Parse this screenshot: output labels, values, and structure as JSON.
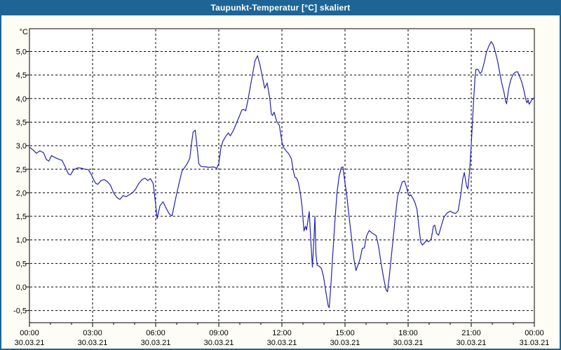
{
  "window": {
    "title": "Taupunkt-Temperatur [°C] skaliert"
  },
  "colors": {
    "titlebar": "#1e6596",
    "window_border": "#1e6596",
    "background": "#fdfdf5",
    "plot_background": "#ffffff",
    "grid": "#000000",
    "axis": "#000000",
    "line": "#2222b2"
  },
  "chart_data": {
    "type": "line",
    "title": "Taupunkt-Temperatur [°C] skaliert",
    "xlabel": "",
    "ylabel": "",
    "y_unit": "°C",
    "grid": "dashed",
    "legend": "none",
    "ylim": [
      -0.5,
      5.0
    ],
    "xlim_hours": [
      0,
      24
    ],
    "y_tick_values": [
      5.0,
      4.5,
      4.0,
      3.5,
      3.0,
      2.5,
      2.0,
      1.5,
      1.0,
      0.5,
      0.0,
      -0.5
    ],
    "y_tick_labels": [
      "5,0",
      "4,5",
      "4,0",
      "3,5",
      "3,0",
      "2,5",
      "2,0",
      "1,5",
      "1,0",
      "0,5",
      "0,0",
      "-0,5"
    ],
    "x_ticks": [
      {
        "hour": 0,
        "time": "00:00",
        "date": "30.03.21"
      },
      {
        "hour": 3,
        "time": "03:00",
        "date": "30.03.21"
      },
      {
        "hour": 6,
        "time": "06:00",
        "date": "30.03.21"
      },
      {
        "hour": 9,
        "time": "09:00",
        "date": "30.03.21"
      },
      {
        "hour": 12,
        "time": "12:00",
        "date": "30.03.21"
      },
      {
        "hour": 15,
        "time": "15:00",
        "date": "30.03.21"
      },
      {
        "hour": 18,
        "time": "18:00",
        "date": "30.03.21"
      },
      {
        "hour": 21,
        "time": "21:00",
        "date": "30.03.21"
      },
      {
        "hour": 24,
        "time": "00:00",
        "date": "31.03.21"
      }
    ],
    "minor_tick_every_hours": 1,
    "series": [
      {
        "name": "Taupunkt-Temperatur",
        "color": "#2222b2",
        "points": [
          [
            0,
            2.97
          ],
          [
            0.17,
            2.91
          ],
          [
            0.33,
            2.84
          ],
          [
            0.5,
            2.89
          ],
          [
            0.67,
            2.85
          ],
          [
            0.8,
            2.71
          ],
          [
            0.92,
            2.67
          ],
          [
            1.05,
            2.79
          ],
          [
            1.2,
            2.75
          ],
          [
            1.4,
            2.71
          ],
          [
            1.55,
            2.69
          ],
          [
            1.7,
            2.55
          ],
          [
            1.85,
            2.4
          ],
          [
            1.95,
            2.38
          ],
          [
            2.1,
            2.49
          ],
          [
            2.3,
            2.53
          ],
          [
            2.5,
            2.52
          ],
          [
            2.65,
            2.5
          ],
          [
            2.8,
            2.49
          ],
          [
            2.95,
            2.38
          ],
          [
            3.05,
            2.28
          ],
          [
            3.15,
            2.2
          ],
          [
            3.25,
            2.18
          ],
          [
            3.4,
            2.26
          ],
          [
            3.55,
            2.28
          ],
          [
            3.7,
            2.24
          ],
          [
            3.85,
            2.16
          ],
          [
            4,
            2
          ],
          [
            4.15,
            1.9
          ],
          [
            4.3,
            1.86
          ],
          [
            4.45,
            1.94
          ],
          [
            4.6,
            1.92
          ],
          [
            4.75,
            1.96
          ],
          [
            4.9,
            2
          ],
          [
            5.05,
            2.08
          ],
          [
            5.2,
            2.2
          ],
          [
            5.35,
            2.28
          ],
          [
            5.5,
            2.31
          ],
          [
            5.62,
            2.26
          ],
          [
            5.75,
            2.3
          ],
          [
            5.88,
            2.2
          ],
          [
            6,
            1.75
          ],
          [
            6.07,
            1.45
          ],
          [
            6.2,
            1.72
          ],
          [
            6.35,
            1.81
          ],
          [
            6.5,
            1.67
          ],
          [
            6.65,
            1.55
          ],
          [
            6.78,
            1.51
          ],
          [
            6.95,
            1.88
          ],
          [
            7.1,
            2.18
          ],
          [
            7.25,
            2.46
          ],
          [
            7.38,
            2.54
          ],
          [
            7.5,
            2.62
          ],
          [
            7.62,
            2.73
          ],
          [
            7.72,
            3.1
          ],
          [
            7.78,
            3.29
          ],
          [
            7.88,
            3.33
          ],
          [
            7.95,
            3.05
          ],
          [
            8.05,
            2.62
          ],
          [
            8.15,
            2.56
          ],
          [
            8.35,
            2.55
          ],
          [
            8.55,
            2.54
          ],
          [
            8.75,
            2.55
          ],
          [
            8.9,
            2.52
          ],
          [
            9,
            2.62
          ],
          [
            9.1,
            2.95
          ],
          [
            9.2,
            3.1
          ],
          [
            9.32,
            3.19
          ],
          [
            9.45,
            3.27
          ],
          [
            9.55,
            3.21
          ],
          [
            9.7,
            3.33
          ],
          [
            9.88,
            3.52
          ],
          [
            10.1,
            3.76
          ],
          [
            10.18,
            3.77
          ],
          [
            10.28,
            3.74
          ],
          [
            10.4,
            4
          ],
          [
            10.5,
            4.26
          ],
          [
            10.62,
            4.55
          ],
          [
            10.72,
            4.8
          ],
          [
            10.84,
            4.91
          ],
          [
            10.95,
            4.73
          ],
          [
            11.05,
            4.51
          ],
          [
            11.18,
            4.22
          ],
          [
            11.3,
            4.33
          ],
          [
            11.42,
            4.02
          ],
          [
            11.5,
            3.67
          ],
          [
            11.56,
            3.64
          ],
          [
            11.63,
            3.71
          ],
          [
            11.75,
            3.52
          ],
          [
            11.88,
            3.43
          ],
          [
            12,
            3.08
          ],
          [
            12.08,
            2.96
          ],
          [
            12.2,
            2.89
          ],
          [
            12.32,
            2.83
          ],
          [
            12.45,
            2.72
          ],
          [
            12.55,
            2.45
          ],
          [
            12.62,
            2.33
          ],
          [
            12.7,
            2.31
          ],
          [
            12.78,
            2.22
          ],
          [
            12.88,
            1.98
          ],
          [
            12.96,
            1.7
          ],
          [
            13.05,
            1.19
          ],
          [
            13.12,
            1.29
          ],
          [
            13.17,
            1.21
          ],
          [
            13.3,
            1.6
          ],
          [
            13.37,
            1.01
          ],
          [
            13.45,
            0.42
          ],
          [
            13.52,
            0.99
          ],
          [
            13.57,
            1.5
          ],
          [
            13.62,
            0.69
          ],
          [
            13.68,
            0.46
          ],
          [
            13.78,
            0.44
          ],
          [
            13.88,
            0.39
          ],
          [
            13.98,
            0.22
          ],
          [
            14.08,
            -0.08
          ],
          [
            14.2,
            -0.4
          ],
          [
            14.25,
            -0.44
          ],
          [
            14.33,
            0.05
          ],
          [
            14.42,
            0.7
          ],
          [
            14.52,
            1.4
          ],
          [
            14.62,
            2
          ],
          [
            14.72,
            2.35
          ],
          [
            14.82,
            2.53
          ],
          [
            14.9,
            2.55
          ],
          [
            15,
            2.2
          ],
          [
            15.07,
            2
          ],
          [
            15.18,
            1.55
          ],
          [
            15.3,
            1.08
          ],
          [
            15.42,
            0.6
          ],
          [
            15.52,
            0.35
          ],
          [
            15.62,
            0.47
          ],
          [
            15.72,
            0.6
          ],
          [
            15.82,
            0.82
          ],
          [
            15.92,
            0.83
          ],
          [
            16.02,
            1.08
          ],
          [
            16.15,
            1.2
          ],
          [
            16.3,
            1.14
          ],
          [
            16.48,
            1.09
          ],
          [
            16.6,
            0.85
          ],
          [
            16.72,
            0.49
          ],
          [
            16.84,
            0.18
          ],
          [
            16.95,
            -0.06
          ],
          [
            17.02,
            -0.1
          ],
          [
            17.1,
            0.2
          ],
          [
            17.2,
            0.64
          ],
          [
            17.3,
            1.08
          ],
          [
            17.4,
            1.53
          ],
          [
            17.5,
            1.93
          ],
          [
            17.6,
            2.06
          ],
          [
            17.72,
            2.23
          ],
          [
            17.83,
            2.25
          ],
          [
            17.95,
            2.08
          ],
          [
            18,
            1.98
          ],
          [
            18.06,
            1.93
          ],
          [
            18.12,
            1.96
          ],
          [
            18.22,
            1.89
          ],
          [
            18.32,
            1.8
          ],
          [
            18.42,
            1.65
          ],
          [
            18.52,
            1.25
          ],
          [
            18.6,
            0.95
          ],
          [
            18.68,
            0.89
          ],
          [
            18.78,
            0.94
          ],
          [
            18.88,
            0.99
          ],
          [
            18.98,
            0.96
          ],
          [
            19.1,
            1.02
          ],
          [
            19.2,
            1.29
          ],
          [
            19.27,
            1.31
          ],
          [
            19.35,
            1.14
          ],
          [
            19.45,
            1.1
          ],
          [
            19.58,
            1.3
          ],
          [
            19.7,
            1.48
          ],
          [
            19.85,
            1.57
          ],
          [
            20,
            1.61
          ],
          [
            20.12,
            1.58
          ],
          [
            20.25,
            1.56
          ],
          [
            20.38,
            1.62
          ],
          [
            20.5,
            1.95
          ],
          [
            20.6,
            2.3
          ],
          [
            20.67,
            2.43
          ],
          [
            20.78,
            2.14
          ],
          [
            20.84,
            2.08
          ],
          [
            20.93,
            2.5
          ],
          [
            21,
            3.02
          ],
          [
            21.06,
            3.52
          ],
          [
            21.12,
            4.01
          ],
          [
            21.18,
            4.45
          ],
          [
            21.22,
            4.62
          ],
          [
            21.32,
            4.62
          ],
          [
            21.42,
            4.53
          ],
          [
            21.5,
            4.57
          ],
          [
            21.62,
            4.77
          ],
          [
            21.72,
            4.98
          ],
          [
            21.85,
            5.13
          ],
          [
            21.95,
            5.21
          ],
          [
            22.05,
            5.14
          ],
          [
            22.15,
            4.98
          ],
          [
            22.25,
            4.8
          ],
          [
            22.35,
            4.56
          ],
          [
            22.45,
            4.33
          ],
          [
            22.55,
            4.15
          ],
          [
            22.63,
            3.95
          ],
          [
            22.68,
            3.89
          ],
          [
            22.78,
            4.21
          ],
          [
            22.88,
            4.4
          ],
          [
            23,
            4.52
          ],
          [
            23.1,
            4.56
          ],
          [
            23.2,
            4.57
          ],
          [
            23.3,
            4.47
          ],
          [
            23.4,
            4.35
          ],
          [
            23.5,
            4.18
          ],
          [
            23.6,
            3.97
          ],
          [
            23.65,
            3.91
          ],
          [
            23.7,
            3.97
          ],
          [
            23.75,
            3.88
          ],
          [
            23.88,
            3.97
          ],
          [
            24,
            4.02
          ]
        ]
      }
    ]
  }
}
